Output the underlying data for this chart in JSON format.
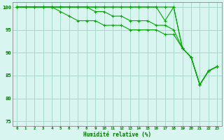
{
  "title": "",
  "xlabel": "Humidité relative (%)",
  "ylabel": "",
  "xlim": [
    -0.5,
    23.5
  ],
  "ylim": [
    74,
    101
  ],
  "yticks": [
    75,
    80,
    85,
    90,
    95,
    100
  ],
  "xticks": [
    0,
    1,
    2,
    3,
    4,
    5,
    6,
    7,
    8,
    9,
    10,
    11,
    12,
    13,
    14,
    15,
    16,
    17,
    18,
    19,
    20,
    21,
    22,
    23
  ],
  "bg_color": "#d8f5f0",
  "grid_color": "#a8d8cc",
  "line_color": "#00aa00",
  "line1_y": [
    100,
    100,
    100,
    100,
    100,
    100,
    100,
    100,
    100,
    100,
    100,
    100,
    100,
    100,
    100,
    100,
    100,
    97,
    100,
    91,
    89,
    83,
    86,
    87
  ],
  "line2_y": [
    100,
    100,
    100,
    100,
    100,
    100,
    100,
    100,
    100,
    100,
    100,
    100,
    100,
    100,
    100,
    100,
    100,
    100,
    100,
    91,
    89,
    83,
    86,
    87
  ],
  "line3_y": [
    100,
    100,
    100,
    100,
    100,
    99,
    98,
    97,
    97,
    97,
    96,
    96,
    96,
    95,
    95,
    95,
    95,
    94,
    94,
    91,
    89,
    83,
    86,
    87
  ],
  "line4_y": [
    100,
    100,
    100,
    100,
    100,
    100,
    100,
    100,
    100,
    99,
    99,
    98,
    98,
    97,
    97,
    97,
    96,
    96,
    95,
    91,
    89,
    83,
    86,
    87
  ]
}
